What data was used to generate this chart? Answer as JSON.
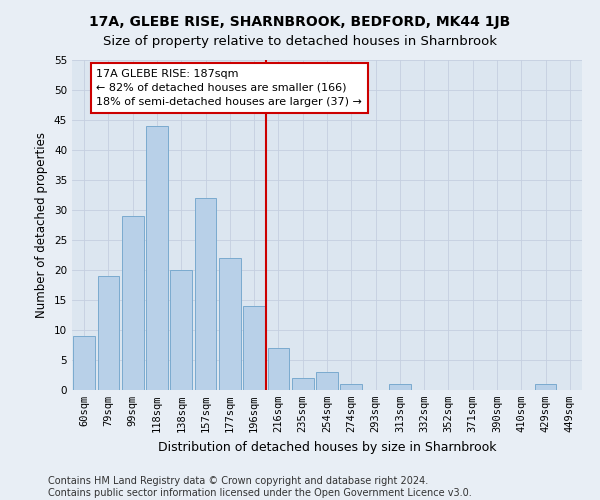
{
  "title": "17A, GLEBE RISE, SHARNBROOK, BEDFORD, MK44 1JB",
  "subtitle": "Size of property relative to detached houses in Sharnbrook",
  "xlabel": "Distribution of detached houses by size in Sharnbrook",
  "ylabel": "Number of detached properties",
  "categories": [
    "60sqm",
    "79sqm",
    "99sqm",
    "118sqm",
    "138sqm",
    "157sqm",
    "177sqm",
    "196sqm",
    "216sqm",
    "235sqm",
    "254sqm",
    "274sqm",
    "293sqm",
    "313sqm",
    "332sqm",
    "352sqm",
    "371sqm",
    "390sqm",
    "410sqm",
    "429sqm",
    "449sqm"
  ],
  "values": [
    9,
    19,
    29,
    44,
    20,
    32,
    22,
    14,
    7,
    2,
    3,
    1,
    0,
    1,
    0,
    0,
    0,
    0,
    0,
    1,
    0
  ],
  "bar_color": "#b8d0e8",
  "bar_edgecolor": "#7aaacf",
  "vline_pos": 7.5,
  "vline_color": "#cc0000",
  "annotation_text": "17A GLEBE RISE: 187sqm\n← 82% of detached houses are smaller (166)\n18% of semi-detached houses are larger (37) →",
  "annotation_box_facecolor": "#ffffff",
  "annotation_box_edgecolor": "#cc0000",
  "ylim": [
    0,
    55
  ],
  "yticks": [
    0,
    5,
    10,
    15,
    20,
    25,
    30,
    35,
    40,
    45,
    50,
    55
  ],
  "title_fontsize": 10,
  "subtitle_fontsize": 9.5,
  "xlabel_fontsize": 9,
  "ylabel_fontsize": 8.5,
  "tick_fontsize": 7.5,
  "annot_fontsize": 8,
  "footer_fontsize": 7,
  "bg_color": "#e8eef5",
  "plot_bg_color": "#dce6f0",
  "footer_line1": "Contains HM Land Registry data © Crown copyright and database right 2024.",
  "footer_line2": "Contains public sector information licensed under the Open Government Licence v3.0.",
  "grid_color": "#c5cfe0"
}
